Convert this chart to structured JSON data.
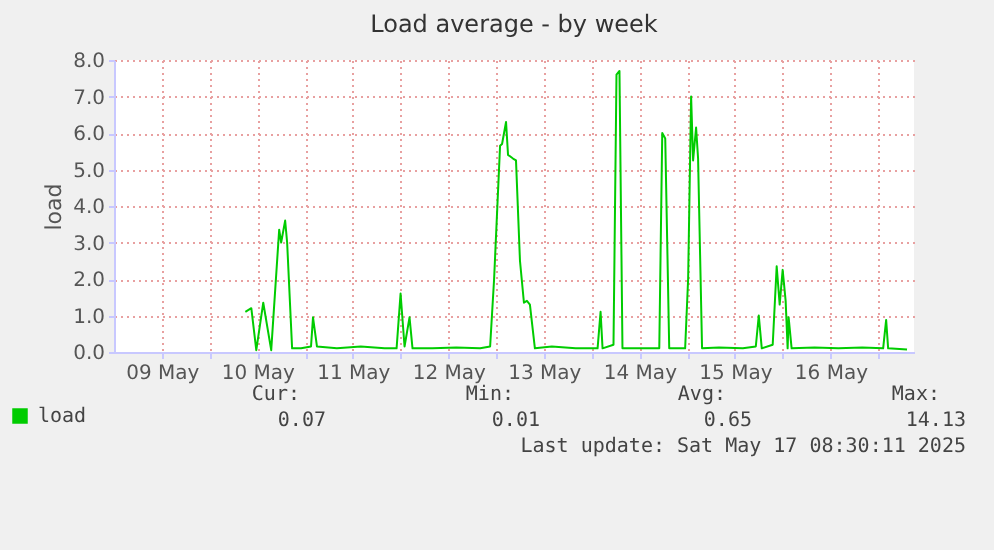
{
  "chart_data": {
    "type": "line",
    "title": "Load average - by week",
    "ylabel": "load",
    "x": [
      "2025-05-10T09:00",
      "2025-05-10T10:30",
      "2025-05-10T11:45",
      "2025-05-10T13:30",
      "2025-05-10T15:30",
      "2025-05-10T17:30",
      "2025-05-10T18:00",
      "2025-05-10T19:00",
      "2025-05-10T19:30",
      "2025-05-10T20:45",
      "2025-05-10T23:00",
      "2025-05-11T01:30",
      "2025-05-11T02:00",
      "2025-05-11T03:00",
      "2025-05-11T08:00",
      "2025-05-11T14:00",
      "2025-05-11T20:00",
      "2025-05-11T23:00",
      "2025-05-12T00:00",
      "2025-05-12T01:00",
      "2025-05-12T02:15",
      "2025-05-12T03:00",
      "2025-05-12T08:00",
      "2025-05-12T14:00",
      "2025-05-12T20:00",
      "2025-05-12T22:30",
      "2025-05-12T23:30",
      "2025-05-13T01:00",
      "2025-05-13T01:30",
      "2025-05-13T02:30",
      "2025-05-13T03:00",
      "2025-05-13T04:15",
      "2025-05-13T05:00",
      "2025-05-13T06:00",
      "2025-05-13T07:00",
      "2025-05-13T07:45",
      "2025-05-13T08:30",
      "2025-05-13T09:45",
      "2025-05-13T14:00",
      "2025-05-13T20:00",
      "2025-05-14T01:30",
      "2025-05-14T02:15",
      "2025-05-14T02:45",
      "2025-05-14T05:30",
      "2025-05-14T06:15",
      "2025-05-14T07:00",
      "2025-05-14T07:45",
      "2025-05-14T12:00",
      "2025-05-14T17:00",
      "2025-05-14T17:45",
      "2025-05-14T18:30",
      "2025-05-14T19:30",
      "2025-05-14T23:30",
      "2025-05-15T00:15",
      "2025-05-15T01:00",
      "2025-05-15T01:30",
      "2025-05-15T02:15",
      "2025-05-15T02:45",
      "2025-05-15T03:45",
      "2025-05-15T08:00",
      "2025-05-15T14:00",
      "2025-05-15T17:15",
      "2025-05-15T18:00",
      "2025-05-15T18:45",
      "2025-05-15T21:30",
      "2025-05-15T22:30",
      "2025-05-15T23:15",
      "2025-05-16T00:00",
      "2025-05-16T00:45",
      "2025-05-16T01:15",
      "2025-05-16T01:30",
      "2025-05-16T02:15",
      "2025-05-16T08:00",
      "2025-05-16T14:00",
      "2025-05-16T20:00",
      "2025-05-17T01:15",
      "2025-05-17T02:00",
      "2025-05-17T02:30",
      "2025-05-17T07:15"
    ],
    "series": [
      {
        "name": "load",
        "color": "#00cc00",
        "values": [
          1.1,
          1.2,
          0.05,
          1.35,
          0.05,
          3.35,
          3.0,
          3.6,
          3.0,
          0.1,
          0.1,
          0.15,
          0.95,
          0.15,
          0.1,
          0.15,
          0.1,
          0.1,
          1.6,
          0.15,
          0.95,
          0.1,
          0.1,
          0.12,
          0.1,
          0.15,
          2.0,
          5.65,
          5.7,
          6.3,
          5.4,
          5.3,
          5.25,
          2.5,
          1.35,
          1.4,
          1.3,
          0.1,
          0.15,
          0.1,
          0.1,
          1.1,
          0.1,
          0.2,
          7.6,
          7.7,
          0.1,
          0.1,
          0.1,
          6.0,
          5.85,
          0.1,
          0.1,
          2.0,
          7.0,
          5.25,
          6.15,
          5.3,
          0.1,
          0.12,
          0.1,
          0.15,
          1.0,
          0.1,
          0.2,
          2.35,
          1.3,
          2.25,
          1.4,
          0.1,
          0.95,
          0.1,
          0.12,
          0.1,
          0.12,
          0.1,
          0.88,
          0.1,
          0.07
        ]
      }
    ],
    "xlim": [
      "2025-05-09T00:00",
      "2025-05-17T09:00"
    ],
    "xticks": [
      {
        "value": "2025-05-09T12:00",
        "label": "09 May"
      },
      {
        "value": "2025-05-10T00:00",
        "label": null
      },
      {
        "value": "2025-05-10T12:00",
        "label": "10 May"
      },
      {
        "value": "2025-05-11T00:00",
        "label": null
      },
      {
        "value": "2025-05-11T12:00",
        "label": "11 May"
      },
      {
        "value": "2025-05-12T00:00",
        "label": null
      },
      {
        "value": "2025-05-12T12:00",
        "label": "12 May"
      },
      {
        "value": "2025-05-13T00:00",
        "label": null
      },
      {
        "value": "2025-05-13T12:00",
        "label": "13 May"
      },
      {
        "value": "2025-05-14T00:00",
        "label": null
      },
      {
        "value": "2025-05-14T12:00",
        "label": "14 May"
      },
      {
        "value": "2025-05-15T00:00",
        "label": null
      },
      {
        "value": "2025-05-15T12:00",
        "label": "15 May"
      },
      {
        "value": "2025-05-16T00:00",
        "label": null
      },
      {
        "value": "2025-05-16T12:00",
        "label": "16 May"
      },
      {
        "value": "2025-05-17T00:00",
        "label": null
      }
    ],
    "ylim": [
      0,
      8
    ],
    "yticks": [
      {
        "value": 0,
        "label": "0.0"
      },
      {
        "value": 1,
        "label": "1.0"
      },
      {
        "value": 2,
        "label": "2.0"
      },
      {
        "value": 3,
        "label": "3.0"
      },
      {
        "value": 4,
        "label": "4.0"
      },
      {
        "value": 5,
        "label": "5.0"
      },
      {
        "value": 6,
        "label": "6.0"
      },
      {
        "value": 7,
        "label": "7.0"
      },
      {
        "value": 8,
        "label": "8.0"
      }
    ],
    "grid": true,
    "legend": "bottom",
    "annotations": [
      "Cur:",
      "Min:",
      "Avg:",
      "Max:",
      "0.07",
      "0.01",
      "0.65",
      "14.13",
      "Last update: Sat May 17 08:30:11 2025"
    ]
  }
}
